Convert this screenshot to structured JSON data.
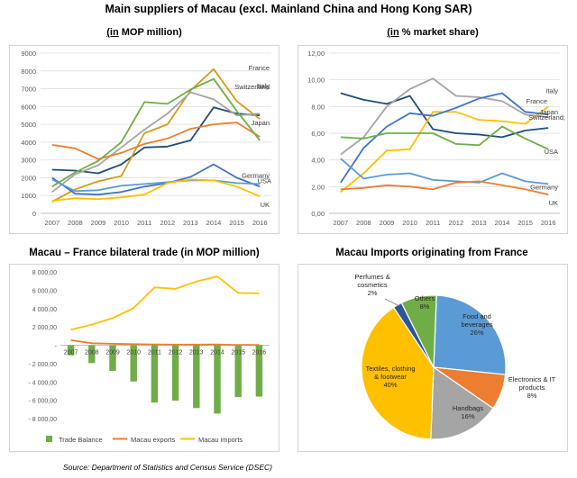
{
  "page": {
    "title": "Main suppliers of Macau (excl. Mainland China and Hong Kong SAR)",
    "source": "Source: Department of Statistics and Census Service (DSEC)"
  },
  "colors": {
    "France": "#4472c4",
    "Italy": "#d4a017",
    "Switzerland": "#a5a5a5",
    "Japan": "#2e75b6",
    "USA": "#1f4e79",
    "Germany": "#5b9bd5",
    "UK": "#ffc000",
    "Germany_pct": "#ed7d31",
    "UK_pct": "#f4b183",
    "olive": "#70ad47",
    "trade_balance": "#70ad47",
    "exports": "#ed7d31",
    "imports": "#ffc000"
  },
  "chart_data": [
    {
      "id": "suppliers_mop",
      "type": "line",
      "title": "",
      "subtitle_prefix": "(in",
      "subtitle_rest": " MOP million)",
      "x": [
        2007,
        2008,
        2009,
        2010,
        2011,
        2012,
        2013,
        2014,
        2015,
        2016
      ],
      "ylim": [
        0,
        9000
      ],
      "yticks": [
        0,
        1000,
        2000,
        3000,
        4000,
        5000,
        6000,
        7000,
        8000,
        9000
      ],
      "grid": true,
      "series": [
        {
          "name": "France",
          "color": "#1f4e79",
          "values": [
            2450,
            2400,
            2250,
            2750,
            3700,
            3750,
            4100,
            5950,
            5600,
            5500
          ]
        },
        {
          "name": "Italy",
          "color": "#d39b1a",
          "values": [
            650,
            1350,
            1800,
            2100,
            4500,
            5000,
            6900,
            8100,
            6300,
            5300
          ]
        },
        {
          "name": "Switzerland",
          "color": "#a5a5a5",
          "values": [
            1200,
            2200,
            2700,
            3700,
            4700,
            5600,
            6800,
            6400,
            5500,
            5600
          ]
        },
        {
          "name": "Japan",
          "color": "#ed7d31",
          "values": [
            3850,
            3650,
            3050,
            3400,
            3900,
            4200,
            4750,
            5000,
            5100,
            4300
          ]
        },
        {
          "name": "USA",
          "color": "#4472c4",
          "values": [
            2000,
            1100,
            1050,
            1200,
            1500,
            1700,
            2050,
            2750,
            2000,
            1500
          ]
        },
        {
          "name": "",
          "color": "#70ad47",
          "values": [
            1500,
            2300,
            2950,
            4000,
            6250,
            6150,
            6950,
            7550,
            5750,
            4100
          ]
        },
        {
          "name": "Germany",
          "color": "#5b9bd5",
          "values": [
            1900,
            1250,
            1300,
            1550,
            1650,
            1750,
            1850,
            1850,
            1700,
            1650
          ]
        },
        {
          "name": "UK",
          "color": "#ffc000",
          "values": [
            700,
            850,
            800,
            900,
            1050,
            1700,
            1900,
            1850,
            1500,
            950
          ]
        }
      ],
      "labels": [
        {
          "text": "France",
          "series": "France"
        },
        {
          "text": "Italy",
          "series": "Italy"
        },
        {
          "text": "Switzerland",
          "series": "Switzerland"
        },
        {
          "text": "Japan",
          "series": "Japan"
        },
        {
          "text": "USA",
          "series": "USA"
        },
        {
          "text": "Germany",
          "series": "Germany"
        },
        {
          "text": "UK",
          "series": "UK"
        }
      ]
    },
    {
      "id": "suppliers_pct",
      "type": "line",
      "title": "",
      "subtitle_prefix": "(in",
      "subtitle_rest": " % market share)",
      "x": [
        2007,
        2008,
        2009,
        2010,
        2011,
        2012,
        2013,
        2014,
        2015,
        2016
      ],
      "ylim": [
        0,
        12
      ],
      "yticks": [
        "0,00",
        "2,00",
        "4,00",
        "6,00",
        "8,00",
        "10,00",
        "12,00"
      ],
      "grid": true,
      "series": [
        {
          "name": "France",
          "color": "#1f4e79",
          "values": [
            9.0,
            8.5,
            8.2,
            8.8,
            6.3,
            6.0,
            5.9,
            5.7,
            6.2,
            6.4
          ]
        },
        {
          "name": "Italy",
          "color": "#ffc000",
          "values": [
            1.6,
            3.0,
            4.7,
            4.8,
            7.6,
            7.6,
            7.0,
            6.9,
            6.7,
            8.0
          ]
        },
        {
          "name": "Switzerland",
          "color": "#a5a5a5",
          "values": [
            4.4,
            5.7,
            8.0,
            9.3,
            10.1,
            8.8,
            8.7,
            8.4,
            7.4,
            7.2
          ]
        },
        {
          "name": "Japan",
          "color": "#4472c4",
          "values": [
            2.3,
            4.9,
            6.5,
            7.5,
            7.3,
            7.9,
            8.6,
            9.0,
            7.6,
            7.4
          ]
        },
        {
          "name": "USA",
          "color": "#70ad47",
          "values": [
            5.7,
            5.6,
            6.0,
            6.0,
            6.0,
            5.2,
            5.1,
            6.5,
            5.6,
            4.8
          ]
        },
        {
          "name": "Germany",
          "color": "#5b9bd5",
          "values": [
            4.1,
            2.6,
            2.9,
            3.0,
            2.5,
            2.4,
            2.3,
            3.0,
            2.4,
            2.2
          ]
        },
        {
          "name": "UK",
          "color": "#ed7d31",
          "values": [
            1.8,
            1.9,
            2.1,
            2.0,
            1.8,
            2.3,
            2.4,
            2.1,
            1.8,
            1.4
          ]
        }
      ],
      "labels": [
        {
          "text": "France",
          "series": "France"
        },
        {
          "text": "Italy",
          "series": "Italy"
        },
        {
          "text": "Switzerland;",
          "series": "Switzerland"
        },
        {
          "text": "Japan",
          "series": "Japan"
        },
        {
          "text": "USA",
          "series": "USA"
        },
        {
          "text": "Germany",
          "series": "Germany"
        },
        {
          "text": "UK",
          "series": "UK"
        }
      ]
    },
    {
      "id": "bilateral",
      "type": "bar",
      "title": "Macau – France bilateral trade (in MOP million)",
      "categories": [
        "2007",
        "2008",
        "2009",
        "2010",
        "2011",
        "2012",
        "2013",
        "2014",
        "2015",
        "2016"
      ],
      "ylim": [
        -8000,
        8000
      ],
      "yticks": [
        "- 8 000,00",
        "- 6 000,00",
        "- 4 000,00",
        "- 2 000,00",
        "-",
        "2 000,00",
        "4 000,00",
        "6 000,00",
        "8 000,00"
      ],
      "series": [
        {
          "name": "Trade Balance",
          "kind": "bar",
          "color": "#70ad47",
          "values": [
            -1100,
            -1950,
            -2800,
            -3950,
            -6250,
            -6050,
            -6850,
            -7450,
            -5650,
            -5600
          ]
        },
        {
          "name": "Macau exports",
          "kind": "line",
          "color": "#ed7d31",
          "values": [
            550,
            220,
            160,
            120,
            80,
            70,
            70,
            80,
            30,
            30
          ]
        },
        {
          "name": "Macau imports",
          "kind": "line",
          "color": "#ffc000",
          "values": [
            1700,
            2250,
            2950,
            4050,
            6300,
            6150,
            6950,
            7500,
            5700,
            5650
          ]
        }
      ],
      "legend": "bottom"
    },
    {
      "id": "imports_france",
      "type": "pie",
      "title": "Macau Imports originating from France",
      "slices": [
        {
          "label": "Food and beverages",
          "value": 26,
          "text": "26%",
          "color": "#5b9bd5"
        },
        {
          "label": "Electronics & IT products",
          "value": 8,
          "text": "8%",
          "color": "#ed7d31"
        },
        {
          "label": "Handbags",
          "value": 16,
          "text": "16%",
          "color": "#a5a5a5"
        },
        {
          "label": "Textiles, clothing & footwear",
          "value": 40,
          "text": "40%",
          "color": "#ffc000"
        },
        {
          "label": "Perfumes & cosmetics",
          "value": 2,
          "text": "2%",
          "color": "#2e5597"
        },
        {
          "label": "Others",
          "value": 8,
          "text": "8%",
          "color": "#70ad47"
        }
      ]
    }
  ]
}
